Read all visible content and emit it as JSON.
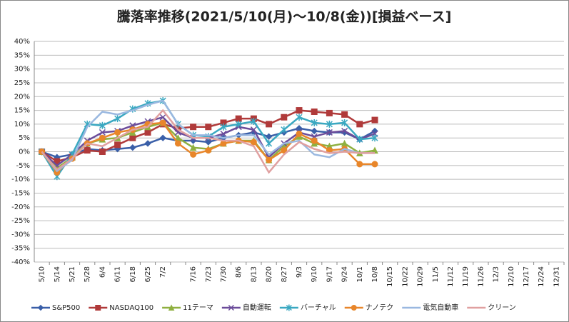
{
  "chart_data": {
    "type": "line",
    "title": "騰落率推移(2021/5/10(月)～10/8(金))[損益ベース]",
    "categories": [
      "5/10",
      "5/14",
      "5/21",
      "5/28",
      "6/4",
      "6/11",
      "6/18",
      "6/25",
      "7/2",
      null,
      "7/16",
      "7/23",
      "7/30",
      "8/6",
      "8/13",
      "8/20",
      "8/27",
      "9/3",
      "9/10",
      "9/17",
      "9/24",
      "10/1",
      "10/8",
      "10/15",
      "10/22",
      "10/29",
      "11/5",
      "11/12",
      "11/19",
      "11/26",
      "12/3",
      "12/10",
      "12/17",
      "12/24",
      "12/31"
    ],
    "series": [
      {
        "name": "S&P500",
        "color": "#3a5fa8",
        "marker": "diamond",
        "values": [
          0,
          -2,
          -1,
          1,
          0.5,
          1,
          1.5,
          3,
          5,
          4,
          4,
          3.5,
          5,
          6,
          7,
          5.5,
          7,
          8.5,
          7.5,
          7,
          7,
          4.5,
          7.5,
          null,
          null,
          null,
          null,
          null,
          null,
          null,
          null,
          null,
          null,
          null,
          null
        ]
      },
      {
        "name": "NASDAQ100",
        "color": "#b03a3a",
        "marker": "square",
        "values": [
          0,
          -3.5,
          -2,
          0.5,
          0,
          2.5,
          5,
          7,
          10,
          8.5,
          9,
          9,
          10.5,
          12,
          12,
          10,
          12.5,
          15,
          14.5,
          14,
          13.5,
          10,
          11.5,
          null,
          null,
          null,
          null,
          null,
          null,
          null,
          null,
          null,
          null,
          null,
          null
        ]
      },
      {
        "name": "11テーマ",
        "color": "#8fb040",
        "marker": "triangle",
        "values": [
          0,
          -6,
          -2,
          3,
          4.5,
          5,
          7,
          9,
          10.5,
          5,
          1.5,
          1,
          3,
          4,
          4,
          -3,
          2,
          5.5,
          3,
          2,
          3,
          -0.5,
          0.5,
          null,
          null,
          null,
          null,
          null,
          null,
          null,
          null,
          null,
          null,
          null,
          null
        ]
      },
      {
        "name": "自動運転",
        "color": "#6b4c9a",
        "marker": "x",
        "values": [
          0,
          -5,
          -1,
          4,
          7,
          7.5,
          9.5,
          11,
          12.5,
          7,
          5,
          5,
          6.5,
          9,
          8,
          -2,
          3,
          7,
          5.5,
          7,
          7.5,
          4.5,
          6.5,
          null,
          null,
          null,
          null,
          null,
          null,
          null,
          null,
          null,
          null,
          null,
          null
        ]
      },
      {
        "name": "バーチャル",
        "color": "#3aa8c1",
        "marker": "star",
        "values": [
          0,
          -9,
          -1,
          10,
          9.5,
          12,
          15.5,
          17.5,
          18.5,
          10,
          6,
          5.5,
          9,
          10,
          11,
          3,
          8,
          12.5,
          10.5,
          10,
          10.5,
          4.5,
          5,
          null,
          null,
          null,
          null,
          null,
          null,
          null,
          null,
          null,
          null,
          null,
          null
        ]
      },
      {
        "name": "ナノテク",
        "color": "#e8862a",
        "marker": "circle",
        "values": [
          0,
          -7.5,
          -2.5,
          3,
          5,
          7,
          8,
          10,
          10.5,
          3,
          -1,
          0.5,
          3,
          4,
          3.5,
          -3,
          0.5,
          6.5,
          4,
          0.5,
          1,
          -4.5,
          -4.5,
          null,
          null,
          null,
          null,
          null,
          null,
          null,
          null,
          null,
          null,
          null,
          null
        ]
      },
      {
        "name": "電気自動車",
        "color": "#9ab8e0",
        "marker": "none",
        "values": [
          0,
          -7,
          -3,
          9,
          14.5,
          13.5,
          15,
          17,
          18.5,
          10,
          6,
          6,
          5,
          6,
          6,
          -1,
          3,
          4,
          -1,
          -2,
          1,
          -0.5,
          -0.5,
          null,
          null,
          null,
          null,
          null,
          null,
          null,
          null,
          null,
          null,
          null,
          null
        ]
      },
      {
        "name": "クリーン",
        "color": "#e0a0a0",
        "marker": "none",
        "values": [
          0,
          -6.5,
          -2.5,
          3,
          2,
          5,
          8,
          9,
          15,
          8,
          5,
          5,
          4,
          4,
          2,
          -7.5,
          -1,
          3.5,
          1,
          -0.5,
          0,
          -0.5,
          -0.5,
          null,
          null,
          null,
          null,
          null,
          null,
          null,
          null,
          null,
          null,
          null,
          null
        ]
      }
    ],
    "ylim": [
      -40,
      40
    ],
    "yticks": [
      {
        "value": -40,
        "label": "-40%"
      },
      {
        "value": -35,
        "label": "-35%"
      },
      {
        "value": -30,
        "label": "-30%"
      },
      {
        "value": -25,
        "label": "-25%"
      },
      {
        "value": -20,
        "label": "-20%"
      },
      {
        "value": -15,
        "label": "-15%"
      },
      {
        "value": -10,
        "label": "-10%"
      },
      {
        "value": -5,
        "label": "-5%"
      },
      {
        "value": 0,
        "label": "0%"
      },
      {
        "value": 5,
        "label": "5%"
      },
      {
        "value": 10,
        "label": "10%"
      },
      {
        "value": 15,
        "label": "15%"
      },
      {
        "value": 20,
        "label": "20%"
      },
      {
        "value": 25,
        "label": "25%"
      },
      {
        "value": 30,
        "label": "30%"
      },
      {
        "value": 35,
        "label": "35%"
      },
      {
        "value": 40,
        "label": "40%"
      }
    ],
    "grid": true
  }
}
